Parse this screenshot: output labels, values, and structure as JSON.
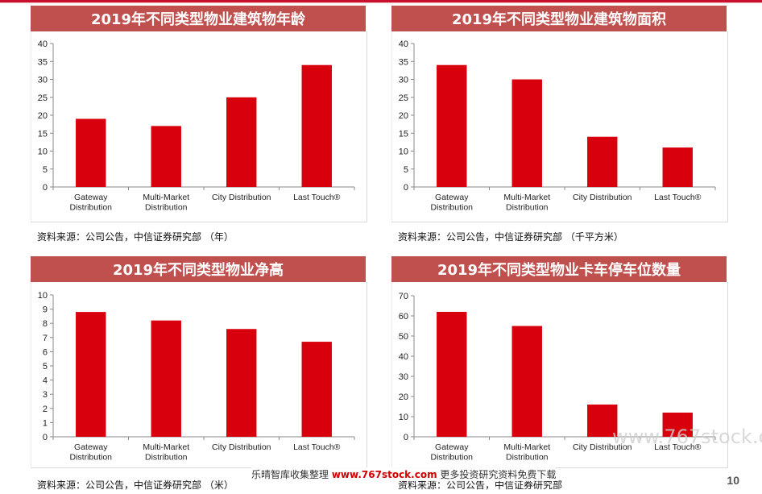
{
  "page_number": "10",
  "watermark": {
    "left_text": "乐晴智库收集整理",
    "site": "www.767stock.com",
    "right_text": "更多投资研究资料免费下载",
    "faint": "www.767stock.com"
  },
  "colors": {
    "bar": "#d9000d",
    "header": "#c0504d",
    "axis": "#888888"
  },
  "chart_data": [
    {
      "type": "bar",
      "title": "2019年不同类型物业建筑物年龄",
      "source": "资料来源：公司公告，中信证券研究部 （年）",
      "categories": [
        [
          "Gateway",
          "Distribution"
        ],
        [
          "Multi-Market",
          "Distribution"
        ],
        [
          "City Distribution"
        ],
        [
          "Last Touch®"
        ]
      ],
      "values": [
        19,
        17,
        25,
        34
      ],
      "ylim": [
        0,
        40
      ],
      "yticks": [
        0,
        5,
        10,
        15,
        20,
        25,
        30,
        35,
        40
      ],
      "grid": false
    },
    {
      "type": "bar",
      "title": "2019年不同类型物业建筑物面积",
      "source": "资料来源：公司公告，中信证券研究部 （千平方米）",
      "categories": [
        [
          "Gateway",
          "Distribution"
        ],
        [
          "Multi-Market",
          "Distribution"
        ],
        [
          "City Distribution"
        ],
        [
          "Last Touch®"
        ]
      ],
      "values": [
        34,
        30,
        14,
        11
      ],
      "ylim": [
        0,
        40
      ],
      "yticks": [
        0,
        5,
        10,
        15,
        20,
        25,
        30,
        35,
        40
      ],
      "grid": false
    },
    {
      "type": "bar",
      "title": "2019年不同类型物业净高",
      "source": "资料来源：公司公告，中信证券研究部 （米）",
      "categories": [
        [
          "Gateway",
          "Distribution"
        ],
        [
          "Multi-Market",
          "Distribution"
        ],
        [
          "City Distribution"
        ],
        [
          "Last Touch®"
        ]
      ],
      "values": [
        8.8,
        8.2,
        7.6,
        6.7
      ],
      "ylim": [
        0,
        10
      ],
      "yticks": [
        0,
        1,
        2,
        3,
        4,
        5,
        6,
        7,
        8,
        9,
        10
      ],
      "grid": false
    },
    {
      "type": "bar",
      "title": "2019年不同类型物业卡车停车位数量",
      "source": "资料来源：公司公告，中信证券研究部",
      "categories": [
        [
          "Gateway",
          "Distribution"
        ],
        [
          "Multi-Market",
          "Distribution"
        ],
        [
          "City Distribution"
        ],
        [
          "Last Touch®"
        ]
      ],
      "values": [
        62,
        55,
        16,
        12
      ],
      "ylim": [
        0,
        70
      ],
      "yticks": [
        0,
        10,
        20,
        30,
        40,
        50,
        60,
        70
      ],
      "grid": false
    }
  ]
}
